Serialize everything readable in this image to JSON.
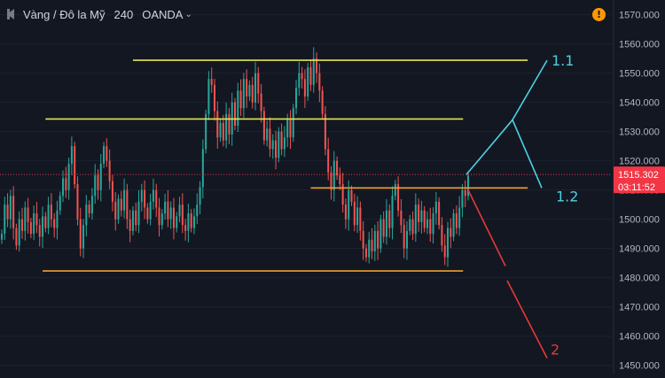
{
  "header": {
    "symbol": "Vàng / Đô la Mỹ",
    "interval": "240",
    "exchange": "OANDA",
    "dropdown_icon": "chevron-down-icon",
    "back_icon": "collapse-icon",
    "warning_icon": "exclamation-icon",
    "warning_text": "!"
  },
  "colors": {
    "background": "#131722",
    "up": "#26a69a",
    "down": "#ef5350",
    "yellow_line": "#e6e64d",
    "orange_line": "#f0a030",
    "cyan_path": "#4dd0e1",
    "red_path": "#e53935",
    "price_tag": "#f23645"
  },
  "chart_data": {
    "type": "candlestick",
    "y_axis_side": "right",
    "ylim": [
      1449,
      1572
    ],
    "yticks": [
      "1570.000",
      "1560.000",
      "1550.000",
      "1540.000",
      "1530.000",
      "1520.000",
      "1510.000",
      "1500.000",
      "1490.000",
      "1480.000",
      "1470.000",
      "1460.000",
      "1450.000"
    ],
    "last_price_label": "1515.302",
    "last_price": 1515.302,
    "countdown_label": "03:11:52",
    "closes": [
      1495,
      1505,
      1500,
      1508,
      1497,
      1491,
      1500,
      1496,
      1504,
      1499,
      1495,
      1502,
      1498,
      1494,
      1501,
      1497,
      1505,
      1500,
      1497,
      1503,
      1508,
      1514,
      1510,
      1519,
      1525,
      1512,
      1500,
      1490,
      1498,
      1505,
      1502,
      1508,
      1515,
      1510,
      1519,
      1525,
      1520,
      1513,
      1506,
      1500,
      1507,
      1503,
      1510,
      1500,
      1496,
      1503,
      1498,
      1506,
      1510,
      1504,
      1500,
      1506,
      1510,
      1504,
      1498,
      1502,
      1506,
      1500,
      1504,
      1497,
      1501,
      1505,
      1498,
      1496,
      1502,
      1497,
      1501,
      1505,
      1511,
      1524,
      1536,
      1548,
      1546,
      1537,
      1528,
      1533,
      1527,
      1536,
      1529,
      1540,
      1532,
      1544,
      1538,
      1548,
      1542,
      1546,
      1540,
      1550,
      1543,
      1537,
      1527,
      1531,
      1524,
      1527,
      1521,
      1530,
      1524,
      1528,
      1534,
      1528,
      1538,
      1545,
      1550,
      1548,
      1542,
      1552,
      1546,
      1555,
      1550,
      1544,
      1536,
      1524,
      1516,
      1510,
      1520,
      1515,
      1512,
      1505,
      1500,
      1510,
      1506,
      1498,
      1504,
      1496,
      1490,
      1487,
      1493,
      1489,
      1496,
      1490,
      1500,
      1494,
      1503,
      1497,
      1508,
      1512,
      1503,
      1498,
      1490,
      1496,
      1500,
      1495,
      1505,
      1499,
      1503,
      1497,
      1500,
      1495,
      1502,
      1506,
      1498,
      1491,
      1487,
      1497,
      1494,
      1502,
      1497,
      1504,
      1510,
      1508,
      1515
    ],
    "annotations": {
      "horizontal_lines": [
        {
          "color": "yellow",
          "price": 1554.4,
          "from_index": 45,
          "to_index": 150
        },
        {
          "color": "yellow",
          "price": 1534.3,
          "from_index": 15,
          "to_index": 140
        },
        {
          "color": "orange",
          "price": 1510.7,
          "from_index": 106,
          "to_index": 150
        },
        {
          "color": "orange",
          "price": 1482.3,
          "from_index": 14,
          "to_index": 140
        }
      ],
      "projection_paths": [
        {
          "color": "cyan",
          "points": [
            [
              1515.3,
              0
            ],
            [
              1534.0,
              1
            ],
            [
              1510.7,
              2
            ]
          ],
          "label": "1.2"
        },
        {
          "color": "cyan",
          "points": [
            [
              1534.0,
              0
            ],
            [
              1554.4,
              1
            ]
          ],
          "label": "1.1"
        },
        {
          "color": "red",
          "points": [
            [
              1510.0,
              0
            ],
            [
              1484.0,
              1
            ]
          ],
          "label": "2"
        },
        {
          "color": "red",
          "points": [
            [
              1479.0,
              0
            ],
            [
              1452.5,
              1
            ]
          ],
          "label": ""
        }
      ]
    }
  },
  "labels": {
    "wave_1_1": "1.1",
    "wave_1_2": "1.2",
    "wave_2": "2"
  }
}
